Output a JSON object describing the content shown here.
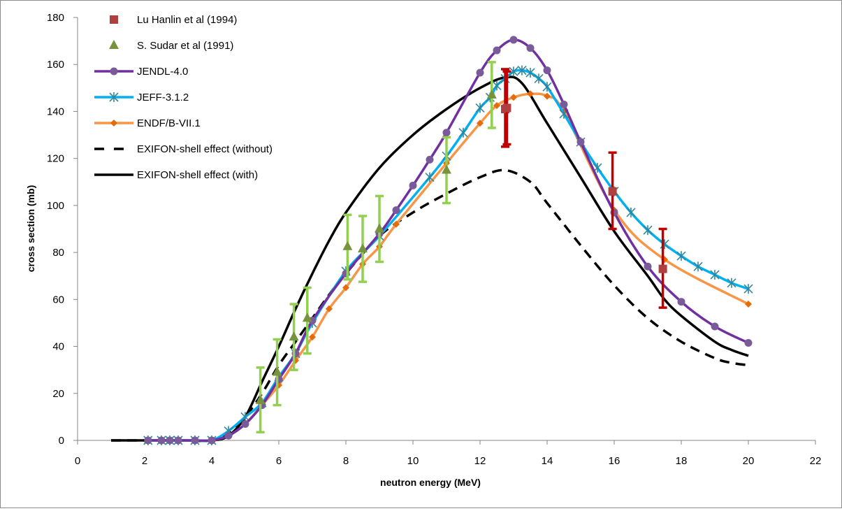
{
  "chart_data": {
    "type": "line",
    "title": "",
    "xlabel": "neutron energy (MeV)",
    "ylabel": "cross section (mb)",
    "xlim": [
      0,
      22
    ],
    "ylim": [
      0,
      180
    ],
    "xticks": [
      0,
      2,
      4,
      6,
      8,
      10,
      12,
      14,
      16,
      18,
      20,
      22
    ],
    "yticks": [
      0,
      20,
      40,
      60,
      80,
      100,
      120,
      140,
      160,
      180
    ],
    "grid": false,
    "legend_position": "top-left",
    "series": [
      {
        "name": "Lu Hanlin et al (1994)",
        "kind": "scatter",
        "marker": "square",
        "color": "#b04040",
        "errcolor": "#c00000",
        "x": [
          12.75,
          12.8,
          15.95,
          17.45
        ],
        "y": [
          141,
          141.5,
          106,
          73
        ],
        "err_low": [
          125,
          126,
          90,
          56.5
        ],
        "err_high": [
          158,
          157,
          122.5,
          90
        ]
      },
      {
        "name": "S. Sudar et al (1991)",
        "kind": "scatter",
        "marker": "triangle",
        "color": "#77933c",
        "errcolor": "#92d050",
        "x": [
          5.45,
          5.95,
          6.45,
          6.85,
          8.05,
          8.5,
          9.0,
          11.0,
          12.35
        ],
        "y": [
          17,
          29,
          44,
          52,
          82.5,
          81.5,
          90,
          115,
          147
        ],
        "err_low": [
          3.5,
          15,
          30,
          37,
          68.5,
          67.5,
          76,
          101,
          133
        ],
        "err_high": [
          31,
          43,
          58,
          65,
          96,
          95.5,
          104,
          129,
          161
        ]
      },
      {
        "name": "JENDL-4.0",
        "kind": "line",
        "marker": "circle",
        "color": "#7030a0",
        "markercolor": "#7a5b9a",
        "x": [
          2.1,
          2.5,
          2.75,
          3.0,
          3.5,
          4.0,
          4.5,
          5.0,
          5.5,
          6.0,
          6.5,
          7.0,
          8.0,
          9.0,
          9.5,
          10.0,
          10.5,
          11.0,
          12.0,
          12.5,
          13.0,
          13.5,
          14.0,
          14.5,
          15.0,
          16.0,
          17.0,
          18.0,
          19.0,
          20.0
        ],
        "y": [
          0,
          0,
          0,
          0,
          0,
          0,
          2,
          7,
          15,
          26,
          37,
          51,
          71,
          88,
          98,
          108.5,
          119.5,
          131,
          156.5,
          166,
          170.5,
          167,
          157.5,
          143,
          127,
          97,
          74,
          59,
          48.5,
          41.5
        ]
      },
      {
        "name": "JEFF-3.1.2",
        "kind": "line",
        "marker": "star",
        "color": "#00b0f0",
        "markercolor": "#31859c",
        "x": [
          2.1,
          2.5,
          2.75,
          3.0,
          3.5,
          4.0,
          4.5,
          5.0,
          5.5,
          6.0,
          6.5,
          7.0,
          8.0,
          9.0,
          10.5,
          11.0,
          11.5,
          12.0,
          12.3,
          12.5,
          12.75,
          13.0,
          13.25,
          13.5,
          13.75,
          14.0,
          14.5,
          15.0,
          15.5,
          16.0,
          16.5,
          17.0,
          17.5,
          18.0,
          18.5,
          19.0,
          19.5,
          20.0
        ],
        "y": [
          0,
          0,
          0,
          0,
          0,
          0,
          4,
          10,
          16,
          27,
          37,
          50,
          72,
          87,
          112,
          121,
          131,
          141.5,
          146,
          151,
          154,
          157,
          157.5,
          156.5,
          154,
          150.5,
          139,
          127,
          116,
          106,
          97,
          89.5,
          83.5,
          78.5,
          74,
          70.5,
          67,
          64.5
        ]
      },
      {
        "name": "ENDF/B-VII.1",
        "kind": "line",
        "marker": "diamond",
        "color": "#f79646",
        "markercolor": "#e46c0a",
        "x": [
          2.1,
          3.0,
          3.5,
          4.0,
          4.5,
          5.0,
          5.5,
          6.0,
          6.5,
          7.0,
          7.5,
          8.0,
          8.5,
          9.0,
          9.5,
          11.0,
          12.0,
          12.5,
          13.0,
          13.5,
          14.0,
          14.5,
          16.0,
          17.5,
          20.0
        ],
        "y": [
          0,
          0,
          0,
          0,
          2,
          7,
          15,
          23.5,
          34,
          44,
          56,
          65,
          75,
          82.5,
          92,
          118,
          135,
          142.5,
          146,
          147.5,
          146.5,
          140,
          98,
          77,
          58
        ]
      },
      {
        "name": "EXIFON-shell effect (without)",
        "kind": "line",
        "marker": "none",
        "dash": true,
        "color": "#000000",
        "x": [
          1.0,
          2.0,
          3.0,
          4.0,
          4.5,
          5.0,
          5.5,
          6.0,
          6.5,
          7.0,
          7.5,
          8.0,
          9.0,
          10.0,
          11.0,
          12.0,
          12.75,
          13.5,
          14.0,
          15.0,
          16.0,
          17.0,
          18.0,
          19.0,
          19.5,
          20.0
        ],
        "y": [
          0,
          0,
          0,
          0,
          3,
          10,
          20,
          32,
          42,
          52,
          62,
          71,
          87,
          97,
          105,
          112,
          115,
          110,
          101,
          83,
          66,
          52,
          42,
          35,
          33,
          32
        ]
      },
      {
        "name": "EXIFON-shell effect (with)",
        "kind": "line",
        "marker": "none",
        "dash": false,
        "color": "#000000",
        "x": [
          1.0,
          2.0,
          3.0,
          4.0,
          4.5,
          5.0,
          5.5,
          6.0,
          6.5,
          7.0,
          7.5,
          8.0,
          9.0,
          10.0,
          11.0,
          12.0,
          12.75,
          13.25,
          14.0,
          15.0,
          16.0,
          17.0,
          17.5,
          18.0,
          19.0,
          19.5,
          20.0
        ],
        "y": [
          0,
          0,
          0,
          0,
          2,
          10,
          25,
          40,
          56,
          71,
          85,
          97,
          116,
          130,
          141,
          150,
          154.5,
          152,
          135,
          112,
          89,
          70,
          60,
          53,
          42,
          38.5,
          36
        ]
      }
    ]
  }
}
